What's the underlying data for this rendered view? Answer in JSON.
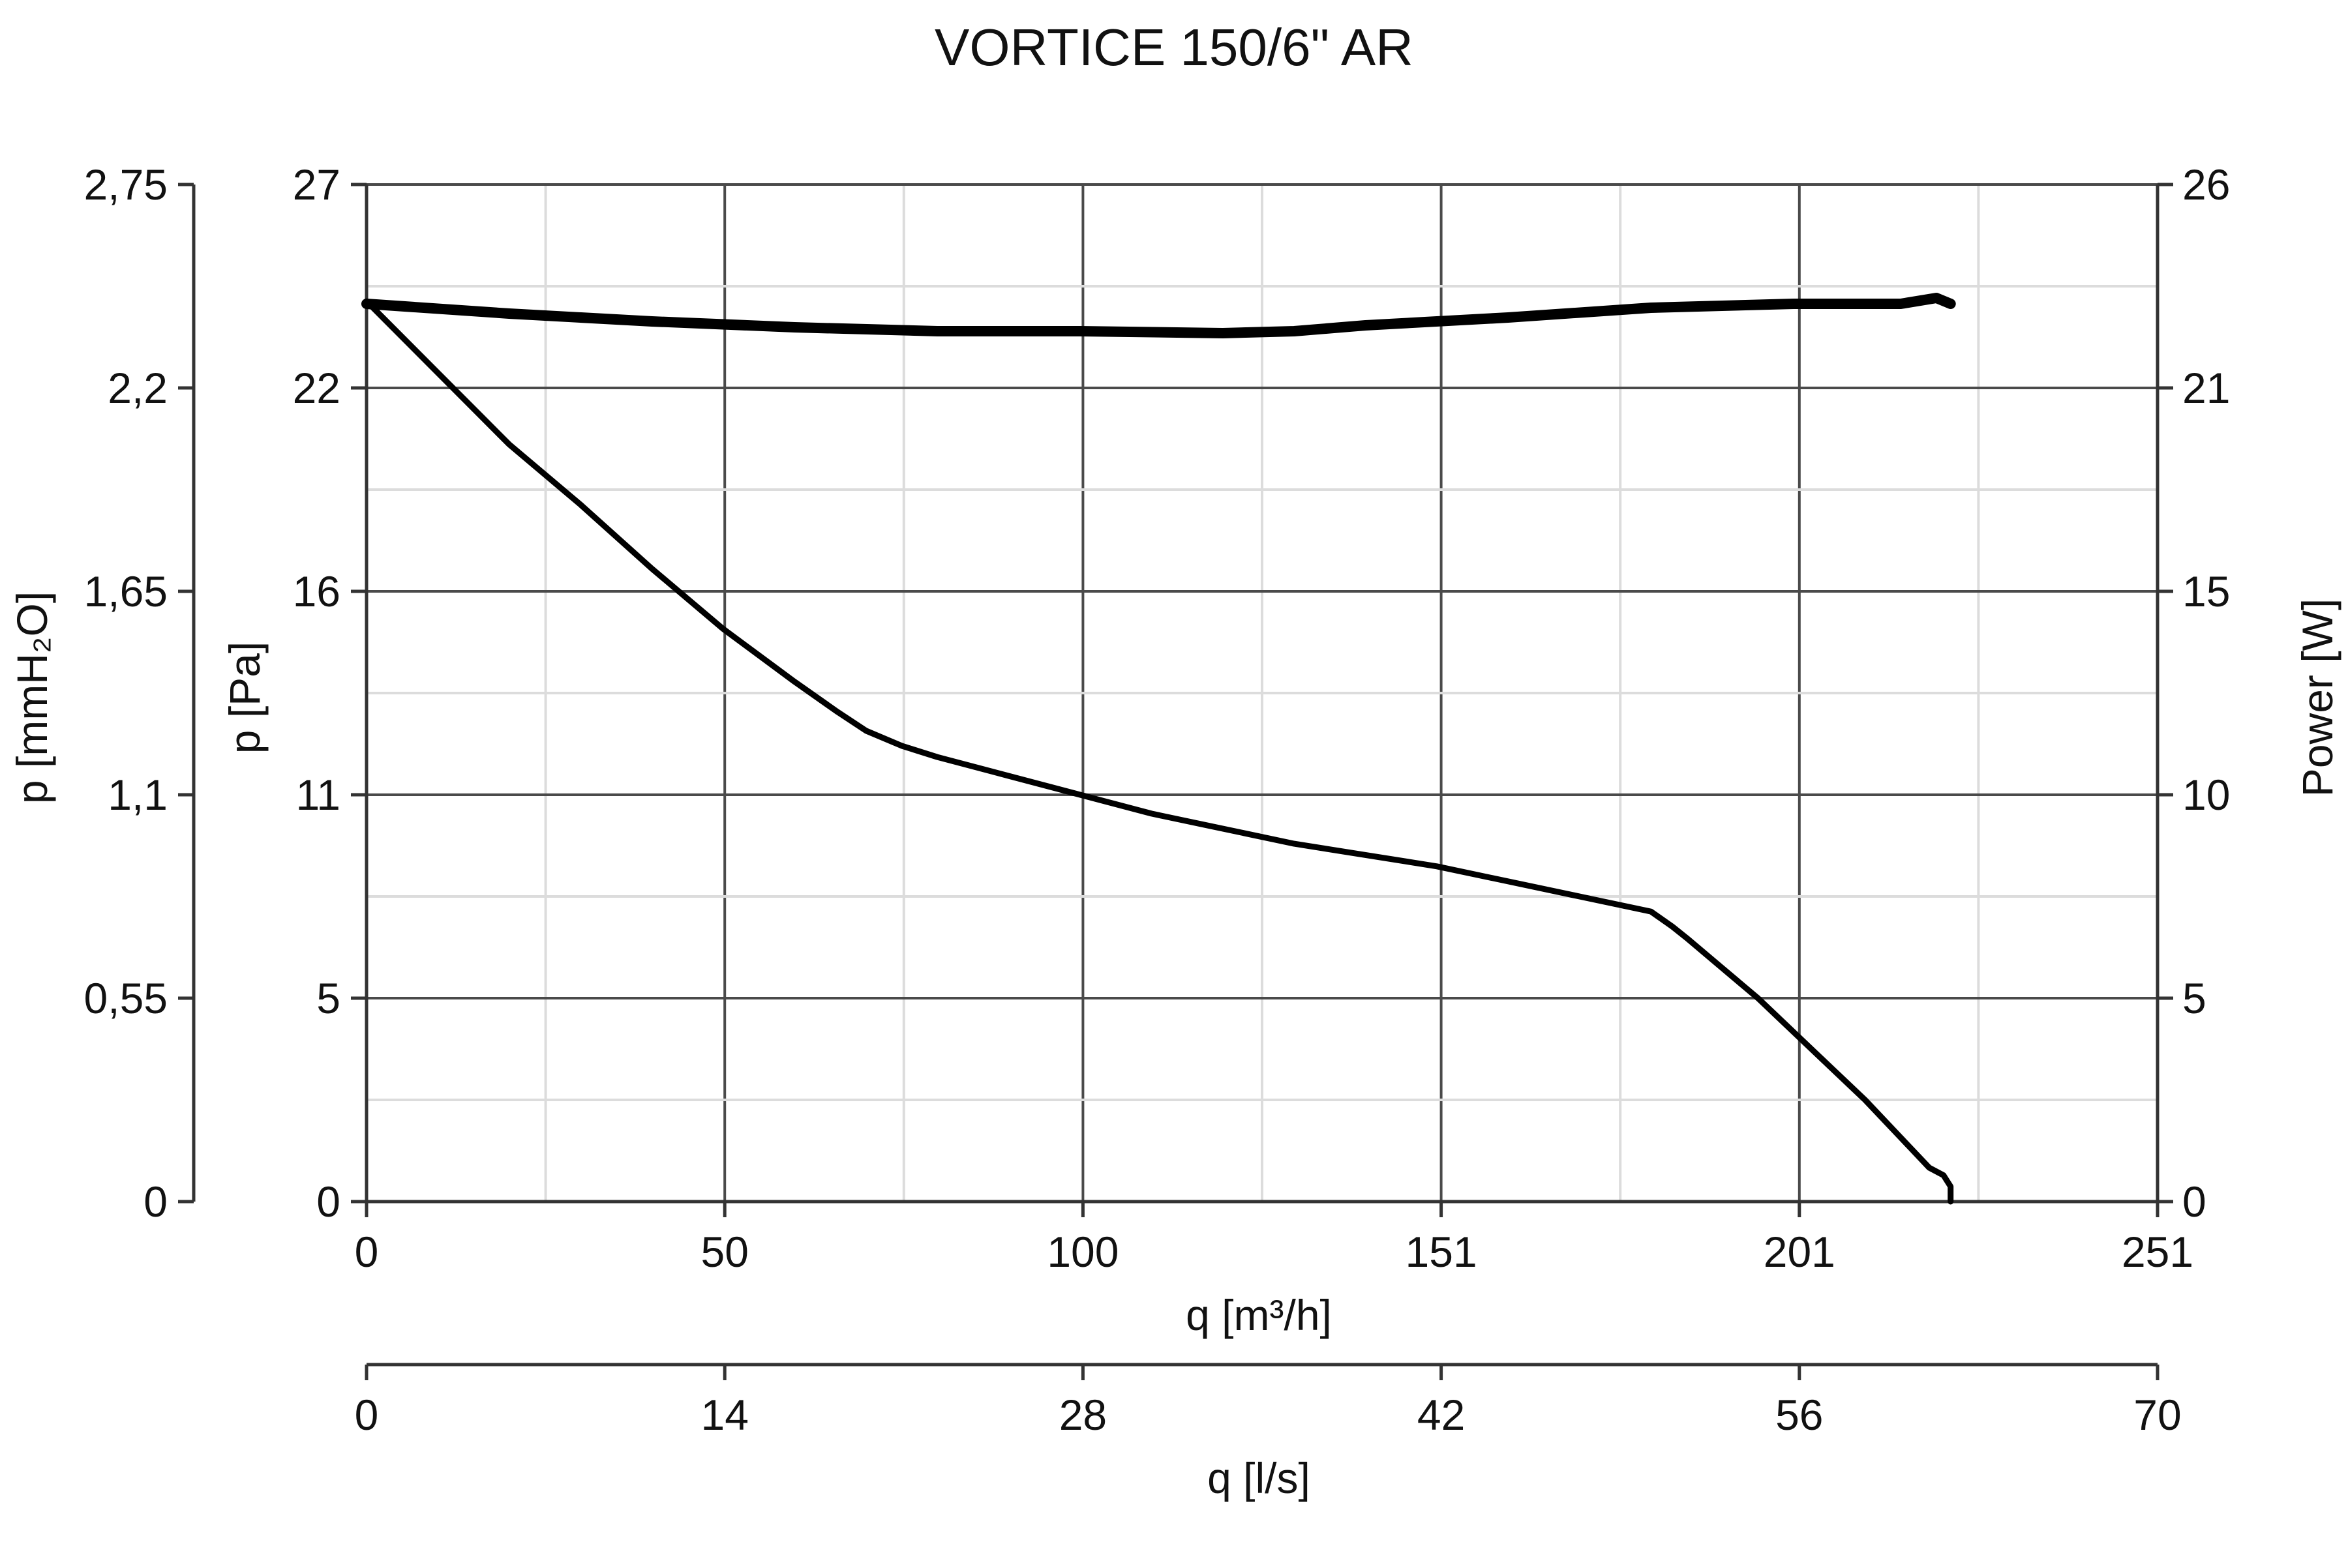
{
  "chart_data": {
    "type": "line",
    "title": "VORTICE 150/6\" AR",
    "x_axes": {
      "primary": {
        "label": "q [m³/h]",
        "range": [
          0,
          251
        ],
        "ticks": [
          0,
          50,
          100,
          151,
          201,
          251
        ]
      },
      "secondary": {
        "label": "q [l/s]",
        "range": [
          0,
          70
        ],
        "ticks": [
          0,
          14,
          28,
          42,
          56,
          70
        ]
      }
    },
    "y_axes": {
      "left_outer": {
        "label": "p [mmH₂O]",
        "range": [
          0,
          2.75
        ],
        "ticks": [
          "0",
          "0,55",
          "1,1",
          "1,65",
          "2,2",
          "2,75"
        ]
      },
      "left_inner": {
        "label": "p [Pa]",
        "range": [
          0,
          27
        ],
        "ticks": [
          "0",
          "5",
          "11",
          "16",
          "22",
          "27"
        ]
      },
      "right": {
        "label": "Power [W]",
        "range": [
          0,
          26
        ],
        "ticks": [
          "0",
          "5",
          "10",
          "15",
          "21",
          "26"
        ]
      }
    },
    "grid": true,
    "series": [
      {
        "name": "",
        "axis": "left_inner",
        "unit": "Pa",
        "x": [
          0,
          10,
          20,
          30,
          40,
          50,
          60,
          66,
          70,
          75,
          80,
          90,
          100,
          110,
          120,
          130,
          140,
          150,
          160,
          170,
          180,
          183,
          185,
          190,
          195,
          200,
          205,
          210,
          215,
          219,
          221,
          222,
          222
        ],
        "y": [
          23.9,
          22.0,
          20.1,
          18.5,
          16.8,
          15.2,
          13.8,
          13.0,
          12.5,
          12.1,
          11.8,
          11.3,
          10.8,
          10.3,
          9.9,
          9.5,
          9.2,
          8.9,
          8.5,
          8.1,
          7.7,
          7.3,
          7.0,
          6.2,
          5.4,
          4.5,
          3.6,
          2.7,
          1.7,
          0.9,
          0.7,
          0.4,
          0.0
        ]
      },
      {
        "name": "",
        "axis": "right",
        "unit": "W",
        "x": [
          0,
          20,
          40,
          60,
          80,
          100,
          120,
          130,
          140,
          160,
          180,
          200,
          210,
          215,
          220,
          222
        ],
        "y": [
          22.95,
          22.7,
          22.5,
          22.35,
          22.25,
          22.25,
          22.2,
          22.25,
          22.4,
          22.6,
          22.85,
          22.95,
          22.95,
          22.95,
          23.1,
          22.95
        ]
      }
    ]
  }
}
